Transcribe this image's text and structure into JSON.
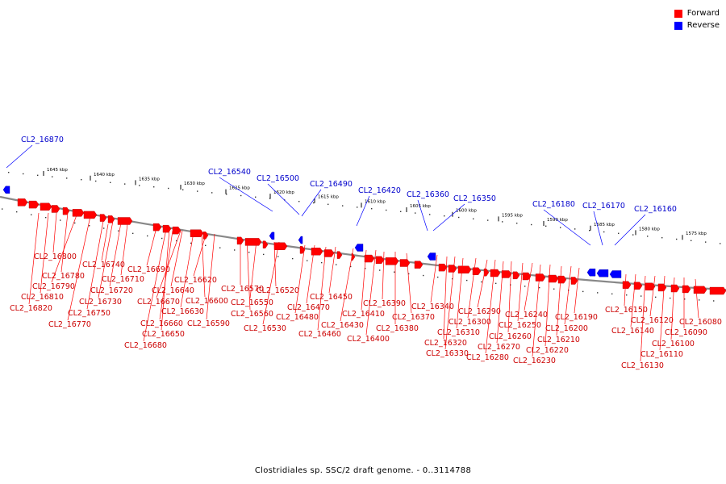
{
  "legend": {
    "items": [
      {
        "label": "Forward",
        "color": "#ff0000"
      },
      {
        "label": "Reverse",
        "color": "#0000ff"
      }
    ]
  },
  "caption": "Clostridiales sp. SSC/2 draft genome. - 0..3114788",
  "colors": {
    "forward": "#ff0000",
    "reverse": "#0000ff",
    "backbone": "#888888",
    "label_forward": "#cc0000",
    "label_reverse": "#0000cc"
  },
  "ticks": [
    "1645 kbp",
    "1640 kbp",
    "1635 kbp",
    "1630 kbp",
    "1625 kbp",
    "1620 kbp",
    "1615 kbp",
    "1610 kbp",
    "1605 kbp",
    "1600 kbp",
    "1595 kbp",
    "1590 kbp",
    "1585 kbp",
    "1580 kbp",
    "1575 kbp"
  ],
  "reverse_labels": [
    "CL2_16870",
    "CL2_16540",
    "CL2_16500",
    "CL2_16490",
    "CL2_16420",
    "CL2_16360",
    "CL2_16350",
    "CL2_16180",
    "CL2_16170",
    "CL2_16160"
  ],
  "forward_labels": [
    "CL2_16800",
    "CL2_16780",
    "CL2_16790",
    "CL2_16810",
    "CL2_16820",
    "CL2_16770",
    "CL2_16750",
    "CL2_16730",
    "CL2_16720",
    "CL2_16710",
    "CL2_16740",
    "CL2_16690",
    "CL2_16680",
    "CL2_16650",
    "CL2_16660",
    "CL2_16670",
    "CL2_16640",
    "CL2_16630",
    "CL2_16600",
    "CL2_16620",
    "CL2_16590",
    "CL2_16570",
    "CL2_16560",
    "CL2_16550",
    "CL2_16520",
    "CL2_16530",
    "CL2_16480",
    "CL2_16470",
    "CL2_16460",
    "CL2_16450",
    "CL2_16430",
    "CL2_16410",
    "CL2_16400",
    "CL2_16390",
    "CL2_16380",
    "CL2_16370",
    "CL2_16340",
    "CL2_16320",
    "CL2_16330",
    "CL2_16310",
    "CL2_16300",
    "CL2_16290",
    "CL2_16280",
    "CL2_16270",
    "CL2_16260",
    "CL2_16250",
    "CL2_16240",
    "CL2_16230",
    "CL2_16220",
    "CL2_16210",
    "CL2_16200",
    "CL2_16190",
    "CL2_16150",
    "CL2_16140",
    "CL2_16130",
    "CL2_16120",
    "CL2_16110",
    "CL2_16100",
    "CL2_16090",
    "CL2_16080"
  ]
}
